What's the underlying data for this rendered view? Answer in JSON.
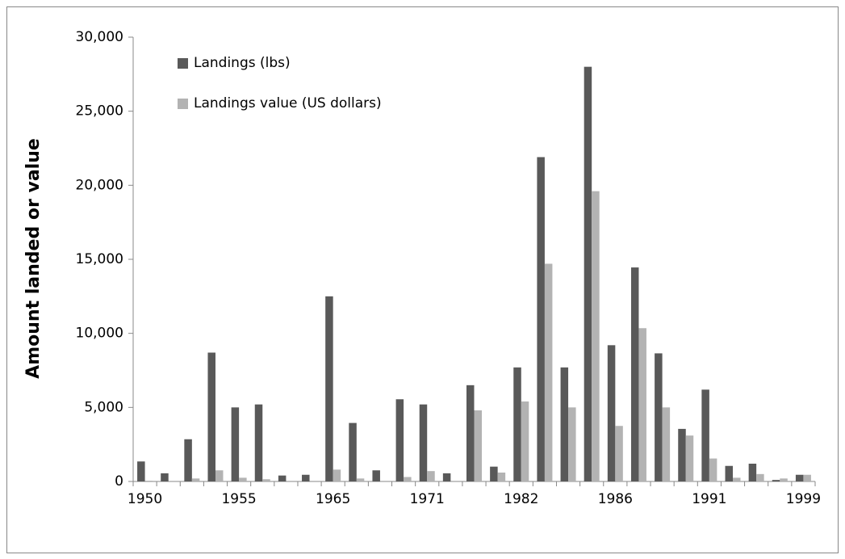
{
  "chart_data": {
    "type": "bar",
    "y_label": "Amount landed or value",
    "categories": [
      "1950",
      null,
      null,
      null,
      "1955",
      null,
      null,
      null,
      "1965",
      null,
      null,
      null,
      "1971",
      null,
      null,
      null,
      "1982",
      null,
      null,
      null,
      "1986",
      null,
      null,
      null,
      "1991",
      null,
      null,
      null,
      "1999"
    ],
    "series": [
      {
        "name": "Landings (lbs)",
        "color": "#595959",
        "values": [
          1350,
          550,
          2850,
          8700,
          5000,
          5200,
          400,
          450,
          12500,
          3950,
          750,
          5550,
          5200,
          550,
          6500,
          1000,
          7700,
          21900,
          7700,
          28000,
          9200,
          14450,
          8650,
          3550,
          6200,
          1050,
          1200,
          100,
          450
        ]
      },
      {
        "name": "Landings value (US dollars)",
        "color": "#b3b3b3",
        "values": [
          50,
          0,
          200,
          750,
          250,
          150,
          0,
          0,
          800,
          200,
          0,
          300,
          700,
          0,
          4800,
          600,
          5400,
          14700,
          5000,
          19600,
          3750,
          10350,
          5000,
          3100,
          1550,
          250,
          500,
          200,
          450
        ]
      }
    ],
    "ylim": [
      0,
      30000
    ],
    "yticks": [
      0,
      {
        "value": 5000,
        "label": "5,000"
      },
      {
        "value": 10000,
        "label": "10,000"
      },
      {
        "value": 15000,
        "label": "15,000"
      },
      {
        "value": 20000,
        "label": "20,000"
      },
      {
        "value": 25000,
        "label": "25,000"
      },
      {
        "value": 30000,
        "label": "30,000"
      }
    ],
    "legend": "top-left",
    "grid": false
  }
}
